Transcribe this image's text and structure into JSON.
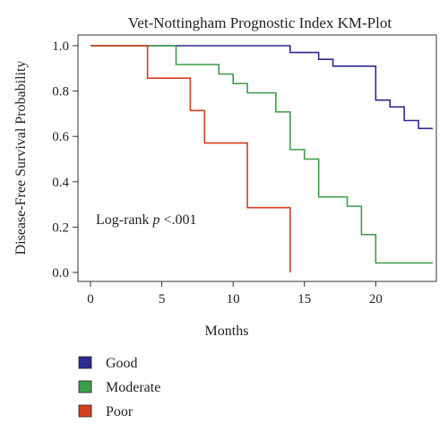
{
  "chart_data": {
    "type": "line",
    "step": true,
    "title": "Vet-Nottingham Prognostic Index KM-Plot",
    "xlabel": "Months",
    "ylabel": "Disease-Free Survival Probability",
    "xlim": [
      0,
      24
    ],
    "ylim": [
      0,
      1
    ],
    "xticks": [
      "0",
      "5",
      "10",
      "15",
      "20"
    ],
    "xtick_values": [
      0,
      5,
      10,
      15,
      20
    ],
    "yticks": [
      "0.0",
      "0.2",
      "0.4",
      "0.6",
      "0.8",
      "1.0"
    ],
    "ytick_values": [
      0,
      0.2,
      0.4,
      0.6,
      0.8,
      1.0
    ],
    "grid": false,
    "legend_position": "bottom-left",
    "annotation": {
      "prefix": "Log-rank ",
      "italic": "p",
      "suffix": " <.001"
    },
    "series": [
      {
        "name": "Good",
        "color": "#2e2a8f",
        "x": [
          0,
          14,
          16,
          17,
          20,
          21,
          22,
          23,
          24
        ],
        "y": [
          1.0,
          0.97,
          0.94,
          0.91,
          0.76,
          0.73,
          0.67,
          0.635,
          0.635
        ]
      },
      {
        "name": "Moderate",
        "color": "#3b9e48",
        "x": [
          0,
          6,
          9,
          10,
          11,
          13,
          14,
          15,
          16,
          18,
          19,
          20,
          24
        ],
        "y": [
          1.0,
          0.917,
          0.875,
          0.833,
          0.792,
          0.708,
          0.542,
          0.5,
          0.333,
          0.292,
          0.167,
          0.042,
          0.042
        ]
      },
      {
        "name": "Poor",
        "color": "#d4401e",
        "x": [
          0,
          4,
          7,
          8,
          11,
          14
        ],
        "y": [
          1.0,
          0.857,
          0.714,
          0.571,
          0.286,
          0.0
        ]
      }
    ]
  }
}
